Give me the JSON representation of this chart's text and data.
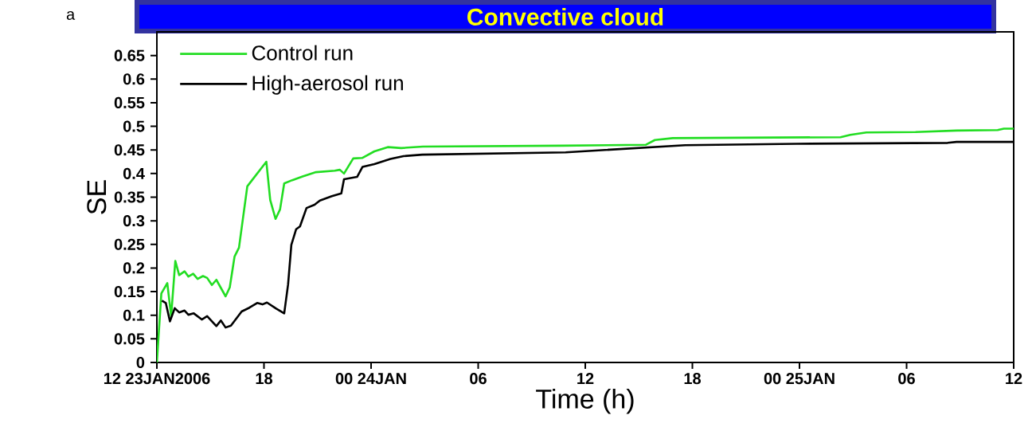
{
  "chart_data": {
    "type": "line",
    "title": "Convective cloud",
    "xlabel": "Time (h)",
    "ylabel": "SE",
    "annotations": [
      "a"
    ],
    "xlim": [
      "2006-01-23T12:00",
      "2006-01-25T12:00"
    ],
    "ylim": [
      0,
      0.7
    ],
    "xticks": [
      {
        "value": "2006-01-23T12:00",
        "label": "12 23JAN2006"
      },
      {
        "value": "2006-01-23T18:00",
        "label": "18"
      },
      {
        "value": "2006-01-24T00:00",
        "label": "00 24JAN"
      },
      {
        "value": "2006-01-24T06:00",
        "label": "06"
      },
      {
        "value": "2006-01-24T12:00",
        "label": "12"
      },
      {
        "value": "2006-01-24T18:00",
        "label": "18"
      },
      {
        "value": "2006-01-25T00:00",
        "label": "00 25JAN"
      },
      {
        "value": "2006-01-25T06:00",
        "label": "06"
      },
      {
        "value": "2006-01-25T12:00",
        "label": "12"
      }
    ],
    "yticks": [
      0,
      0.05,
      0.1,
      0.15,
      0.2,
      0.25,
      0.3,
      0.35,
      0.4,
      0.45,
      0.5,
      0.55,
      0.6,
      0.65
    ],
    "legend": "top left",
    "line_style": "solid",
    "series": [
      {
        "name": "Control run",
        "color": "#22dd22",
        "x": [
          "2006-01-23T12:00",
          "2006-01-23T12:15",
          "2006-01-23T12:35",
          "2006-01-23T12:48",
          "2006-01-23T13:02",
          "2006-01-23T13:15",
          "2006-01-23T13:33",
          "2006-01-23T13:46",
          "2006-01-23T14:02",
          "2006-01-23T14:17",
          "2006-01-23T14:35",
          "2006-01-23T14:49",
          "2006-01-23T15:05",
          "2006-01-23T15:20",
          "2006-01-23T15:51",
          "2006-01-23T16:05",
          "2006-01-23T16:21",
          "2006-01-23T16:36",
          "2006-01-23T17:04",
          "2006-01-23T17:20",
          "2006-01-23T18:08",
          "2006-01-23T18:21",
          "2006-01-23T18:39",
          "2006-01-23T18:54",
          "2006-01-23T19:08",
          "2006-01-23T19:35",
          "2006-01-23T20:10",
          "2006-01-23T20:55",
          "2006-01-23T21:58",
          "2006-01-23T22:15",
          "2006-01-23T22:29",
          "2006-01-23T23:00",
          "2006-01-23T23:30",
          "2006-01-24T00:11",
          "2006-01-24T00:56",
          "2006-01-24T01:41",
          "2006-01-24T02:54",
          "2006-01-24T10:42",
          "2006-01-24T15:24",
          "2006-01-24T15:54",
          "2006-01-24T16:54",
          "2006-01-25T02:18",
          "2006-01-25T02:51",
          "2006-01-25T03:45",
          "2006-01-25T06:30",
          "2006-01-25T08:48",
          "2006-01-25T11:06",
          "2006-01-25T11:27",
          "2006-01-25T12:00"
        ],
        "values": [
          0,
          0.146,
          0.168,
          0.098,
          0.215,
          0.185,
          0.193,
          0.182,
          0.188,
          0.177,
          0.183,
          0.179,
          0.164,
          0.175,
          0.14,
          0.159,
          0.224,
          0.243,
          0.373,
          0.386,
          0.425,
          0.344,
          0.304,
          0.324,
          0.379,
          0.386,
          0.394,
          0.403,
          0.406,
          0.408,
          0.4,
          0.432,
          0.433,
          0.447,
          0.456,
          0.454,
          0.457,
          0.459,
          0.461,
          0.471,
          0.475,
          0.477,
          0.482,
          0.487,
          0.488,
          0.491,
          0.492,
          0.495,
          0.495
        ]
      },
      {
        "name": "High-aerosol run",
        "color": "#000000",
        "x": [
          "2006-01-23T12:17",
          "2006-01-23T12:30",
          "2006-01-23T12:44",
          "2006-01-23T13:00",
          "2006-01-23T13:15",
          "2006-01-23T13:33",
          "2006-01-23T13:46",
          "2006-01-23T14:04",
          "2006-01-23T14:31",
          "2006-01-23T14:49",
          "2006-01-23T15:20",
          "2006-01-23T15:35",
          "2006-01-23T15:51",
          "2006-01-23T16:09",
          "2006-01-23T16:45",
          "2006-01-23T17:11",
          "2006-01-23T17:37",
          "2006-01-23T17:55",
          "2006-01-23T18:10",
          "2006-01-23T18:41",
          "2006-01-23T19:08",
          "2006-01-23T19:21",
          "2006-01-23T19:32",
          "2006-01-23T19:48",
          "2006-01-23T20:01",
          "2006-01-23T20:23",
          "2006-01-23T20:50",
          "2006-01-23T21:08",
          "2006-01-23T21:48",
          "2006-01-23T22:20",
          "2006-01-23T22:29",
          "2006-01-23T23:13",
          "2006-01-23T23:31",
          "2006-01-24T00:11",
          "2006-01-24T01:05",
          "2006-01-24T01:49",
          "2006-01-24T02:52",
          "2006-01-24T10:54",
          "2006-01-24T17:36",
          "2006-01-24T23:51",
          "2006-01-25T08:18",
          "2006-01-25T08:48",
          "2006-01-25T12:00"
        ],
        "values": [
          0.131,
          0.126,
          0.087,
          0.115,
          0.106,
          0.11,
          0.101,
          0.104,
          0.091,
          0.098,
          0.077,
          0.089,
          0.074,
          0.078,
          0.108,
          0.116,
          0.126,
          0.123,
          0.127,
          0.114,
          0.104,
          0.165,
          0.249,
          0.282,
          0.288,
          0.327,
          0.334,
          0.343,
          0.352,
          0.358,
          0.388,
          0.393,
          0.414,
          0.42,
          0.431,
          0.437,
          0.44,
          0.445,
          0.46,
          0.463,
          0.465,
          0.467,
          0.467
        ]
      }
    ]
  }
}
